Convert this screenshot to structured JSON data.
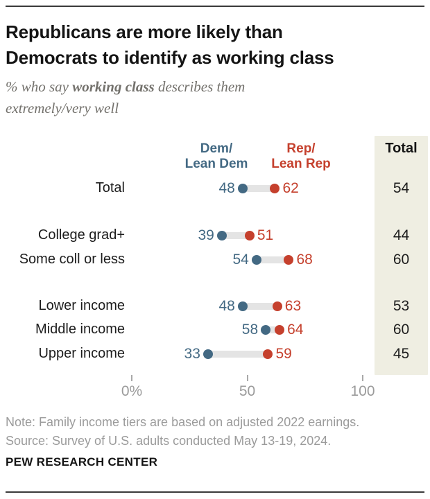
{
  "header": {
    "title_line1": "Republicans are more likely than",
    "title_line2": "Democrats to identify as working class",
    "subtitle_prefix": "% who say ",
    "subtitle_bold": "working class",
    "subtitle_suffix": " describes them extremely/very well"
  },
  "chart_data": {
    "type": "scatter",
    "subtype": "dumbbell-dot-plot",
    "legend": {
      "dem_line1": "Dem/",
      "dem_line2": "Lean Dem",
      "rep_line1": "Rep/",
      "rep_line2": "Lean Rep"
    },
    "total_header": "Total",
    "rows": [
      {
        "label": "Total",
        "dem": 48,
        "rep": 62,
        "total": 54,
        "group": 0
      },
      {
        "label": "College grad+",
        "dem": 39,
        "rep": 51,
        "total": 44,
        "group": 1
      },
      {
        "label": "Some coll or less",
        "dem": 54,
        "rep": 68,
        "total": 60,
        "group": 1
      },
      {
        "label": "Lower income",
        "dem": 48,
        "rep": 63,
        "total": 53,
        "group": 2
      },
      {
        "label": "Middle income",
        "dem": 58,
        "rep": 64,
        "total": 60,
        "group": 2
      },
      {
        "label": "Upper income",
        "dem": 33,
        "rep": 59,
        "total": 45,
        "group": 2
      }
    ],
    "axis": {
      "range": [
        0,
        100
      ],
      "ticks": [
        {
          "value": 0,
          "label": "0%"
        },
        {
          "value": 50,
          "label": "50"
        },
        {
          "value": 100,
          "label": "100"
        }
      ]
    },
    "colors": {
      "dem": "#436983",
      "rep": "#C5402D",
      "connector": "#E4E4E4",
      "total_column_bg": "#EFEEE2"
    }
  },
  "footer": {
    "note": "Note: Family income tiers are based on adjusted 2022 earnings.",
    "source": "Source: Survey of U.S. adults conducted May 13-19, 2024.",
    "brand": "PEW RESEARCH CENTER"
  }
}
